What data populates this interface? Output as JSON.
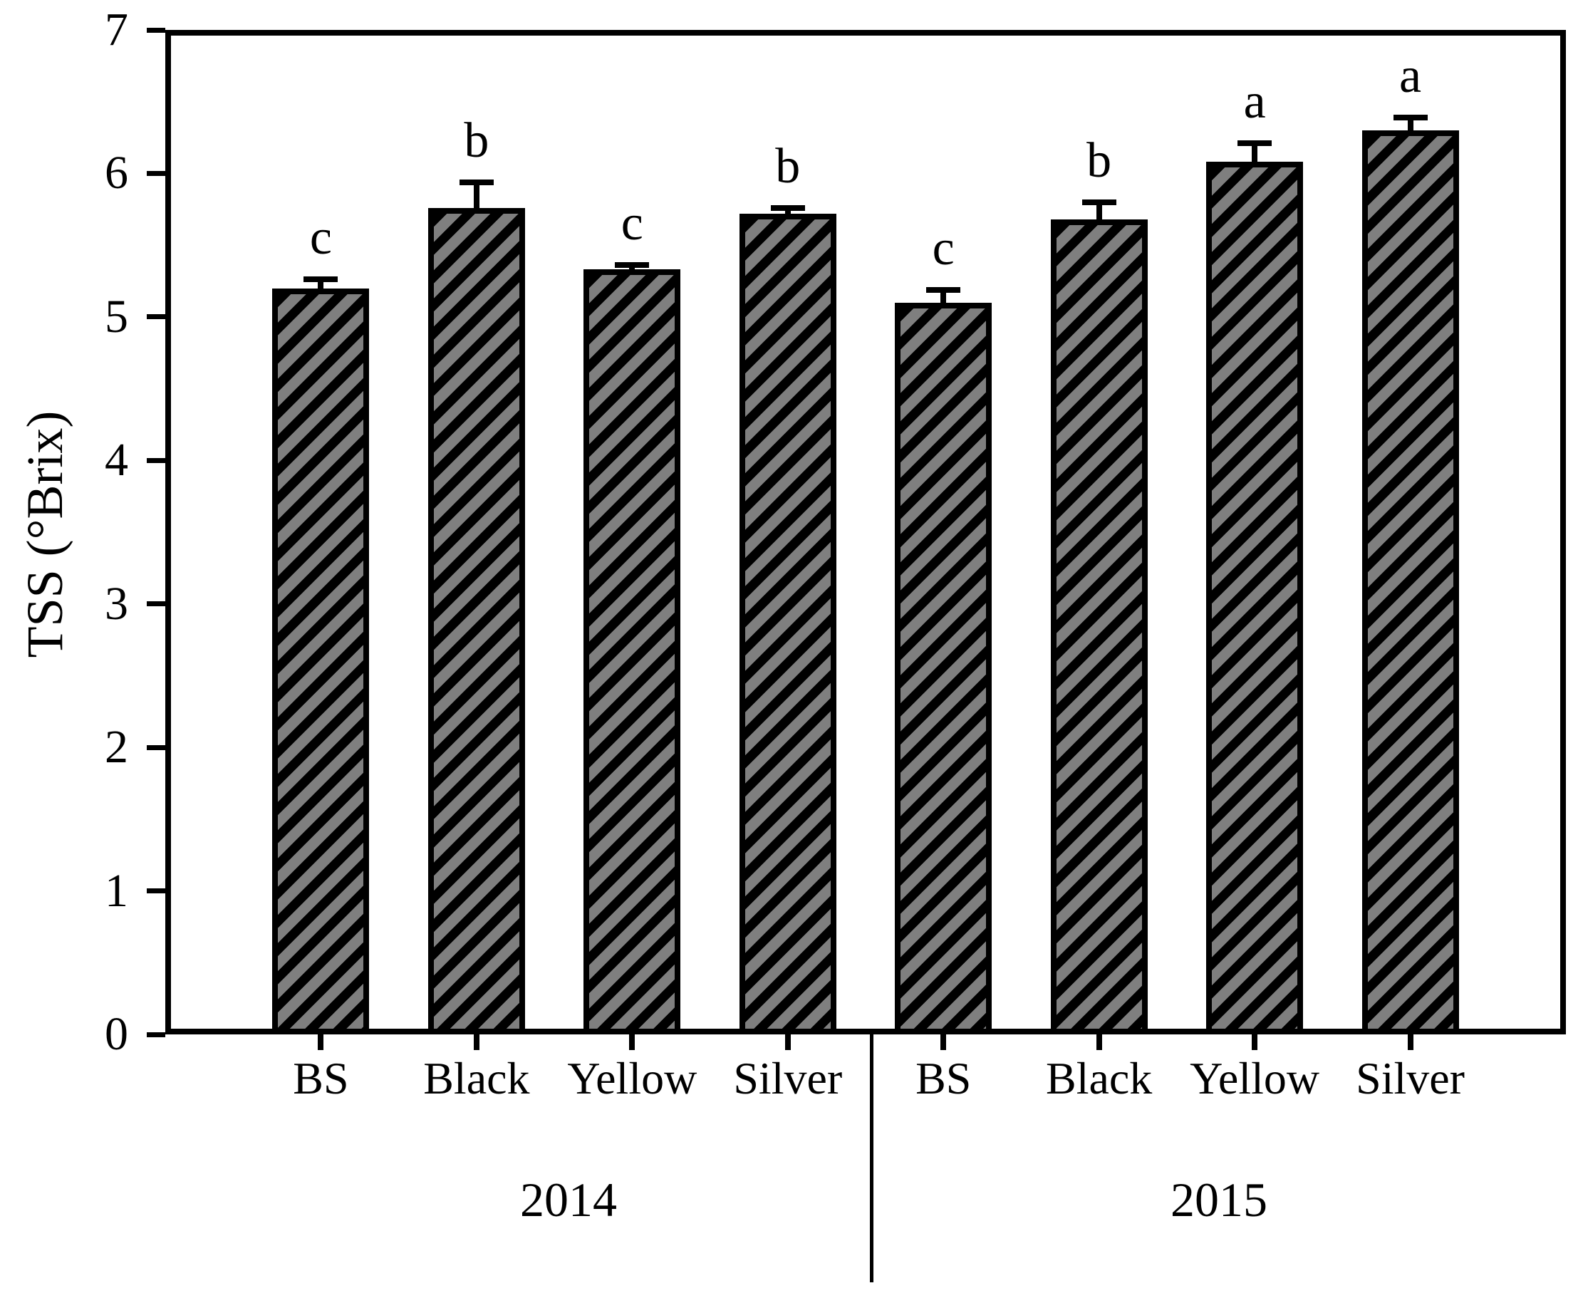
{
  "figure": {
    "background": "#ffffff",
    "text_color": "#000000",
    "bar_fill": "#7f7f7f",
    "bar_stripe": "#000000"
  },
  "chart_data": {
    "type": "bar",
    "title": "",
    "xlabel": "",
    "ylabel": "TSS (°Brix)",
    "ylim": [
      0,
      7
    ],
    "yticks": [
      0,
      1,
      2,
      3,
      4,
      5,
      6,
      7
    ],
    "grid": false,
    "legend": null,
    "bar_hatch": "forward-diagonal black stripes on gray",
    "group_divider_between_years": true,
    "categories": [
      "BS",
      "Black",
      "Yellow",
      "Silver",
      "BS",
      "Black",
      "Yellow",
      "Silver"
    ],
    "groups": [
      {
        "year": "2014",
        "bars": [
          {
            "label": "BS",
            "value": 5.2,
            "error": 0.06,
            "letter": "c"
          },
          {
            "label": "Black",
            "value": 5.76,
            "error": 0.18,
            "letter": "b"
          },
          {
            "label": "Yellow",
            "value": 5.33,
            "error": 0.03,
            "letter": "c"
          },
          {
            "label": "Silver",
            "value": 5.72,
            "error": 0.04,
            "letter": "b"
          }
        ]
      },
      {
        "year": "2015",
        "bars": [
          {
            "label": "BS",
            "value": 5.1,
            "error": 0.09,
            "letter": "c"
          },
          {
            "label": "Black",
            "value": 5.68,
            "error": 0.12,
            "letter": "b"
          },
          {
            "label": "Yellow",
            "value": 6.08,
            "error": 0.13,
            "letter": "a"
          },
          {
            "label": "Silver",
            "value": 6.3,
            "error": 0.09,
            "letter": "a"
          }
        ]
      }
    ]
  }
}
